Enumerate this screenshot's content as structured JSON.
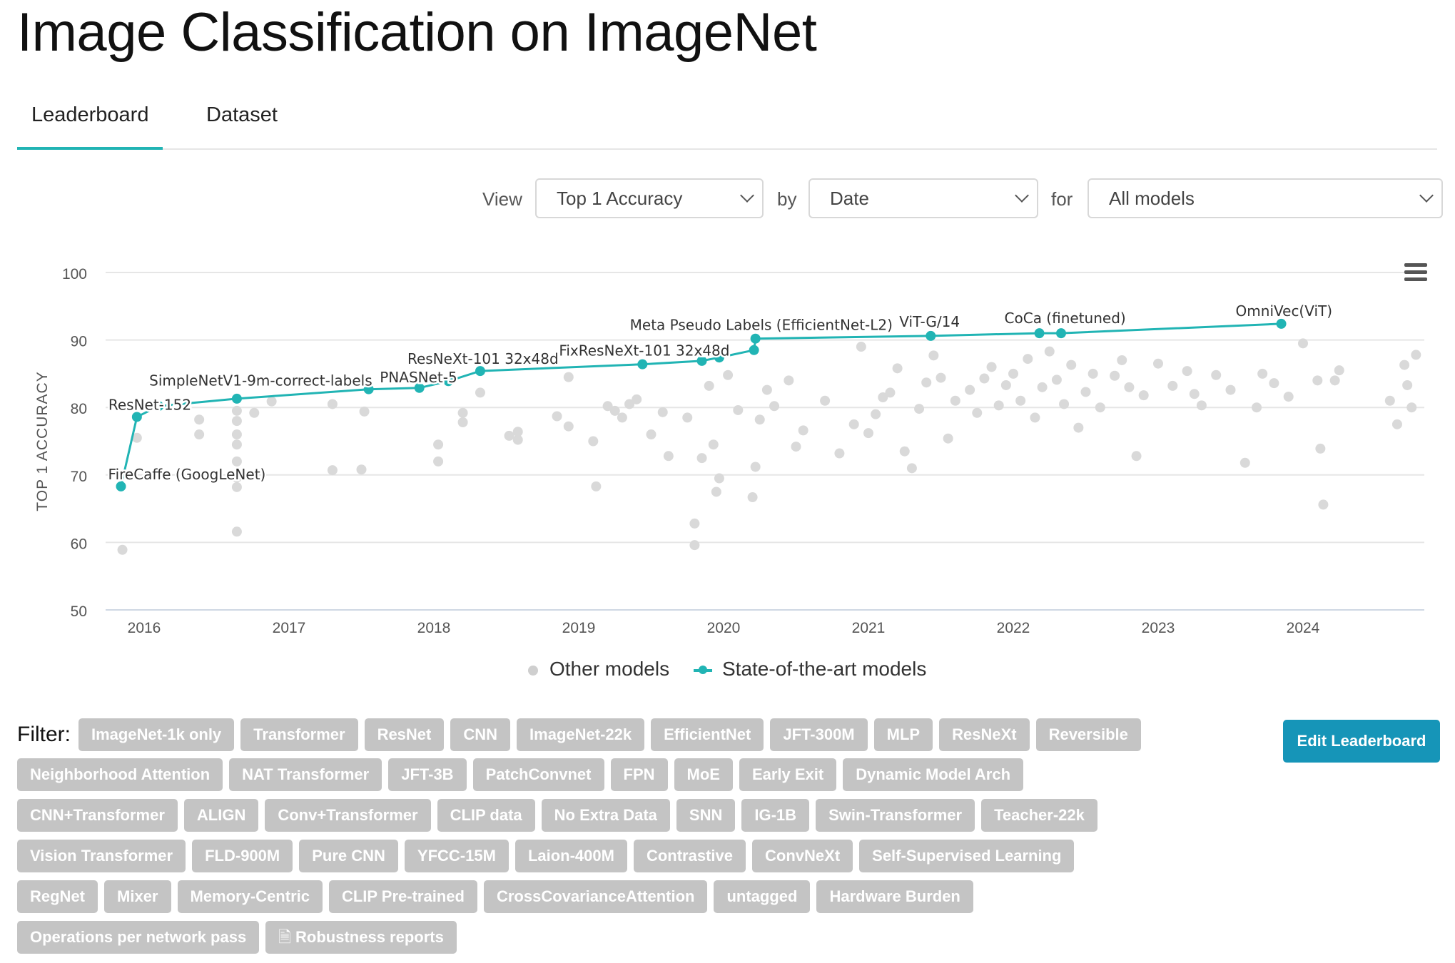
{
  "page": {
    "title": "Image Classification on ImageNet"
  },
  "tabs": [
    {
      "label": "Leaderboard",
      "active": true
    },
    {
      "label": "Dataset",
      "active": false
    }
  ],
  "view_controls": {
    "view_label": "View",
    "metric": "Top 1 Accuracy",
    "by_label": "by",
    "by": "Date",
    "for_label": "for",
    "for": "All models"
  },
  "chart_data": {
    "type": "scatter",
    "title": "",
    "xlabel": "",
    "ylabel": "TOP 1 ACCURACY",
    "xlim": [
      2015.75,
      2024.9
    ],
    "ylim": [
      50,
      100
    ],
    "yticks": [
      50,
      60,
      70,
      80,
      90,
      100
    ],
    "xticks": [
      2016,
      2017,
      2018,
      2019,
      2020,
      2021,
      2022,
      2023,
      2024
    ],
    "grid": true,
    "legend": [
      "Other models",
      "State-of-the-art models"
    ],
    "legend_position": "bottom-center",
    "colors": {
      "other": "#d9d9d9",
      "sota": "#21b4b4"
    },
    "series": [
      {
        "name": "State-of-the-art models",
        "points": [
          {
            "x": 2015.84,
            "y": 68.3,
            "label": "FireCaffe (GoogLeNet)"
          },
          {
            "x": 2015.95,
            "y": 78.6,
            "label": "ResNet-152"
          },
          {
            "x": 2016.1,
            "y": 80.2,
            "label": ""
          },
          {
            "x": 2016.64,
            "y": 81.3,
            "label": ""
          },
          {
            "x": 2017.55,
            "y": 82.7,
            "label": "SimpleNetV1-9m-correct-labels"
          },
          {
            "x": 2017.9,
            "y": 82.9,
            "label": "PNASNet-5"
          },
          {
            "x": 2018.1,
            "y": 83.9,
            "label": ""
          },
          {
            "x": 2018.32,
            "y": 85.4,
            "label": "ResNeXt-101 32x48d"
          },
          {
            "x": 2019.44,
            "y": 86.4,
            "label": "FixResNeXt-101 32x48d"
          },
          {
            "x": 2019.85,
            "y": 86.9,
            "label": ""
          },
          {
            "x": 2019.97,
            "y": 87.4,
            "label": ""
          },
          {
            "x": 2020.21,
            "y": 88.5,
            "label": ""
          },
          {
            "x": 2020.22,
            "y": 90.2,
            "label": "Meta Pseudo Labels (EfficientNet-L2)"
          },
          {
            "x": 2021.43,
            "y": 90.6,
            "label": "ViT-G/14"
          },
          {
            "x": 2022.18,
            "y": 91.0,
            "label": "CoCa (finetuned)"
          },
          {
            "x": 2022.33,
            "y": 91.0,
            "label": ""
          },
          {
            "x": 2023.85,
            "y": 92.4,
            "label": "OmniVec(ViT)"
          }
        ]
      },
      {
        "name": "Other models",
        "points": [
          [
            2015.85,
            58.9
          ],
          [
            2015.95,
            75.5
          ],
          [
            2016.38,
            78.2
          ],
          [
            2016.38,
            76.0
          ],
          [
            2016.64,
            61.6
          ],
          [
            2016.64,
            68.2
          ],
          [
            2016.64,
            69.6
          ],
          [
            2016.64,
            72.0
          ],
          [
            2016.64,
            74.5
          ],
          [
            2016.64,
            76.0
          ],
          [
            2016.64,
            78.0
          ],
          [
            2016.64,
            79.5
          ],
          [
            2016.76,
            79.2
          ],
          [
            2016.88,
            80.9
          ],
          [
            2017.3,
            70.7
          ],
          [
            2017.3,
            80.5
          ],
          [
            2017.5,
            70.8
          ],
          [
            2017.52,
            79.4
          ],
          [
            2018.03,
            74.5
          ],
          [
            2018.03,
            72.0
          ],
          [
            2018.2,
            79.2
          ],
          [
            2018.2,
            77.8
          ],
          [
            2018.32,
            82.2
          ],
          [
            2018.52,
            75.8
          ],
          [
            2018.58,
            75.2
          ],
          [
            2018.58,
            76.4
          ],
          [
            2018.85,
            78.7
          ],
          [
            2018.93,
            84.5
          ],
          [
            2018.93,
            77.2
          ],
          [
            2019.1,
            75.0
          ],
          [
            2019.12,
            68.3
          ],
          [
            2019.2,
            80.2
          ],
          [
            2019.25,
            79.5
          ],
          [
            2019.3,
            78.5
          ],
          [
            2019.35,
            80.5
          ],
          [
            2019.4,
            81.2
          ],
          [
            2019.5,
            76.0
          ],
          [
            2019.58,
            79.3
          ],
          [
            2019.62,
            72.8
          ],
          [
            2019.75,
            78.5
          ],
          [
            2019.8,
            62.8
          ],
          [
            2019.8,
            59.6
          ],
          [
            2019.85,
            72.5
          ],
          [
            2019.9,
            83.2
          ],
          [
            2019.93,
            74.5
          ],
          [
            2019.95,
            67.5
          ],
          [
            2019.97,
            69.5
          ],
          [
            2020.03,
            84.8
          ],
          [
            2020.1,
            79.6
          ],
          [
            2020.2,
            66.7
          ],
          [
            2020.22,
            71.2
          ],
          [
            2020.25,
            78.2
          ],
          [
            2020.3,
            82.6
          ],
          [
            2020.35,
            80.2
          ],
          [
            2020.45,
            84.0
          ],
          [
            2020.5,
            74.2
          ],
          [
            2020.55,
            76.6
          ],
          [
            2020.7,
            81.0
          ],
          [
            2020.8,
            73.2
          ],
          [
            2020.9,
            77.5
          ],
          [
            2020.95,
            89.0
          ],
          [
            2021.0,
            76.2
          ],
          [
            2021.05,
            79.0
          ],
          [
            2021.1,
            81.5
          ],
          [
            2021.15,
            82.2
          ],
          [
            2021.2,
            85.8
          ],
          [
            2021.25,
            73.5
          ],
          [
            2021.3,
            71.0
          ],
          [
            2021.35,
            79.8
          ],
          [
            2021.4,
            83.7
          ],
          [
            2021.45,
            87.7
          ],
          [
            2021.5,
            84.4
          ],
          [
            2021.55,
            75.4
          ],
          [
            2021.6,
            81.0
          ],
          [
            2021.7,
            82.6
          ],
          [
            2021.75,
            79.2
          ],
          [
            2021.8,
            84.3
          ],
          [
            2021.85,
            86.0
          ],
          [
            2021.9,
            80.3
          ],
          [
            2021.95,
            83.3
          ],
          [
            2022.0,
            85.0
          ],
          [
            2022.05,
            81.0
          ],
          [
            2022.1,
            87.2
          ],
          [
            2022.15,
            78.5
          ],
          [
            2022.2,
            83.0
          ],
          [
            2022.25,
            88.3
          ],
          [
            2022.3,
            84.1
          ],
          [
            2022.35,
            80.5
          ],
          [
            2022.4,
            86.3
          ],
          [
            2022.45,
            77.0
          ],
          [
            2022.5,
            82.3
          ],
          [
            2022.55,
            85.0
          ],
          [
            2022.6,
            80.0
          ],
          [
            2022.7,
            84.7
          ],
          [
            2022.75,
            87.0
          ],
          [
            2022.8,
            83.0
          ],
          [
            2022.85,
            72.8
          ],
          [
            2022.9,
            81.8
          ],
          [
            2023.0,
            86.5
          ],
          [
            2023.1,
            83.2
          ],
          [
            2023.2,
            85.4
          ],
          [
            2023.25,
            82.0
          ],
          [
            2023.3,
            80.3
          ],
          [
            2023.4,
            84.8
          ],
          [
            2023.5,
            82.6
          ],
          [
            2023.6,
            71.8
          ],
          [
            2023.68,
            80.0
          ],
          [
            2023.72,
            85.0
          ],
          [
            2023.8,
            83.6
          ],
          [
            2023.9,
            81.6
          ],
          [
            2024.0,
            89.5
          ],
          [
            2024.1,
            84.0
          ],
          [
            2024.12,
            73.9
          ],
          [
            2024.14,
            65.6
          ],
          [
            2024.22,
            84.0
          ],
          [
            2024.25,
            85.5
          ],
          [
            2024.6,
            81.0
          ],
          [
            2024.65,
            77.5
          ],
          [
            2024.7,
            86.3
          ],
          [
            2024.72,
            83.3
          ],
          [
            2024.75,
            80.0
          ],
          [
            2024.78,
            87.8
          ]
        ]
      }
    ]
  },
  "filter": {
    "label": "Filter:",
    "tags": [
      "ImageNet-1k only",
      "Transformer",
      "ResNet",
      "CNN",
      "ImageNet-22k",
      "EfficientNet",
      "JFT-300M",
      "MLP",
      "ResNeXt",
      "Reversible",
      "Neighborhood Attention",
      "NAT Transformer",
      "JFT-3B",
      "PatchConvnet",
      "FPN",
      "MoE",
      "Early Exit",
      "Dynamic Model Arch",
      "CNN+Transformer",
      "ALIGN",
      "Conv+Transformer",
      "CLIP data",
      "No Extra Data",
      "SNN",
      "IG-1B",
      "Swin-Transformer",
      "Teacher-22k",
      "Vision Transformer",
      "FLD-900M",
      "Pure CNN",
      "YFCC-15M",
      "Laion-400M",
      "Contrastive",
      "ConvNeXt",
      "Self-Supervised Learning",
      "RegNet",
      "Mixer",
      "Memory-Centric",
      "CLIP Pre-trained",
      "CrossCovarianceAttention",
      "untagged",
      "Hardware Burden",
      "Operations per network pass",
      "Robustness reports"
    ]
  },
  "edit_button": {
    "label": "Edit Leaderboard"
  }
}
